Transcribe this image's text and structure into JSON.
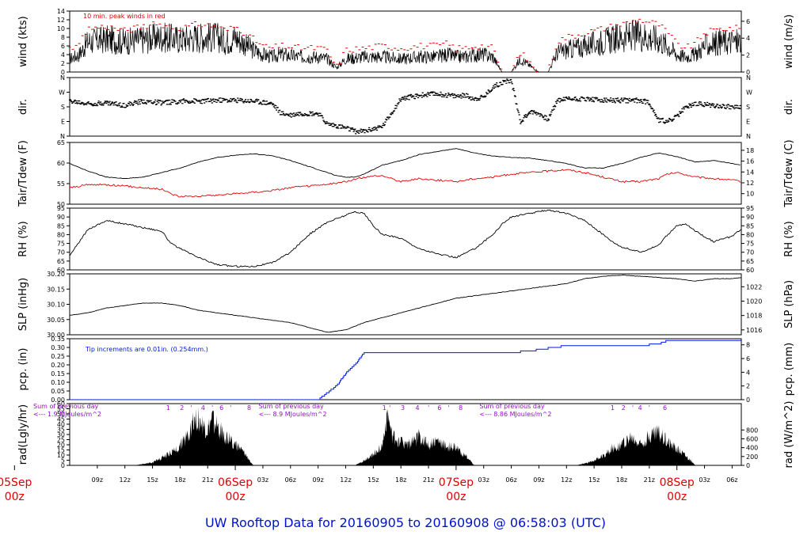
{
  "title": "UW Rooftop Data for 20160905  to  20160908 @ 06:58:03  (UTC)",
  "colors": {
    "axis": "#000000",
    "red": "#e00000",
    "blue": "#0018e0",
    "purple": "#9010c0",
    "title": "#0010d0"
  },
  "time_axis": {
    "start_hour": 6,
    "end_hour": 79,
    "ticks": [
      {
        "h": 9,
        "label": "09z"
      },
      {
        "h": 12,
        "label": "12z"
      },
      {
        "h": 15,
        "label": "15z"
      },
      {
        "h": 18,
        "label": "18z"
      },
      {
        "h": 21,
        "label": "21z"
      },
      {
        "h": 27,
        "label": "03z"
      },
      {
        "h": 30,
        "label": "06z"
      },
      {
        "h": 33,
        "label": "09z"
      },
      {
        "h": 36,
        "label": "12z"
      },
      {
        "h": 39,
        "label": "15z"
      },
      {
        "h": 42,
        "label": "18z"
      },
      {
        "h": 45,
        "label": "21z"
      },
      {
        "h": 51,
        "label": "03z"
      },
      {
        "h": 54,
        "label": "06z"
      },
      {
        "h": 57,
        "label": "09z"
      },
      {
        "h": 60,
        "label": "12z"
      },
      {
        "h": 63,
        "label": "15z"
      },
      {
        "h": 66,
        "label": "18z"
      },
      {
        "h": 69,
        "label": "21z"
      },
      {
        "h": 75,
        "label": "03z"
      },
      {
        "h": 78,
        "label": "06z"
      }
    ],
    "dates": [
      {
        "h": 0,
        "day": "05Sep",
        "z": "00z"
      },
      {
        "h": 24,
        "day": "06Sep",
        "z": "00z"
      },
      {
        "h": 48,
        "day": "07Sep",
        "z": "00z"
      },
      {
        "h": 72,
        "day": "08Sep",
        "z": "00z"
      }
    ]
  },
  "chart_data": [
    {
      "type": "line",
      "name": "wind",
      "left_label": "wind (kts)",
      "right_label": "wind (m/s)",
      "left_ticks": [
        "0",
        "2",
        "4",
        "6",
        "8",
        "10",
        "12",
        "14"
      ],
      "ylim": [
        0,
        14
      ],
      "right_ticks": [
        {
          "v": 0,
          "label": "0"
        },
        {
          "v": 3.888,
          "label": "2"
        },
        {
          "v": 7.776,
          "label": "4"
        },
        {
          "v": 11.664,
          "label": "6"
        }
      ],
      "annotation": "10 min. peak winds in red",
      "x": [
        6,
        7,
        8,
        10,
        12,
        14,
        16,
        18,
        20,
        22,
        23,
        24,
        25,
        26,
        27,
        28,
        29,
        31,
        33,
        34,
        35,
        36,
        38,
        40,
        42,
        44,
        46,
        47,
        48,
        49,
        50,
        51,
        52,
        53,
        54,
        55,
        57,
        58,
        59,
        60,
        62,
        64,
        66,
        68,
        70,
        71,
        72,
        73,
        74,
        75,
        77,
        79
      ],
      "y": [
        3,
        4,
        7,
        7.5,
        7,
        7.5,
        8,
        7.5,
        8,
        8,
        7,
        8,
        6.5,
        5,
        4,
        3.5,
        4,
        3.5,
        3.5,
        3,
        1,
        3,
        3.5,
        3.5,
        3,
        3.5,
        3.5,
        4,
        3.5,
        3.5,
        4,
        4,
        3.5,
        0,
        0,
        3,
        0,
        0,
        4.5,
        5,
        6,
        7,
        8,
        8.5,
        7.5,
        6,
        4,
        3.5,
        4,
        6,
        7,
        7
      ],
      "peak_y": [
        5,
        6,
        10,
        10.5,
        9.5,
        10.5,
        11,
        10,
        11,
        10.5,
        9.5,
        10.5,
        9,
        7.5,
        6,
        5.5,
        6,
        5.5,
        5.5,
        5,
        1,
        5,
        5.5,
        6,
        5.5,
        6,
        6,
        6.5,
        5.5,
        5.5,
        6,
        6,
        5.5,
        0,
        0,
        4.5,
        0,
        0,
        7,
        8,
        9,
        10,
        11,
        12,
        11,
        9,
        6.5,
        5.5,
        6.5,
        9,
        10,
        10
      ]
    },
    {
      "type": "scatter",
      "name": "dir",
      "left_label": "dir.",
      "right_label": "dir.",
      "left_ticks": [
        "N",
        "E",
        "S",
        "W",
        "N"
      ],
      "ylim": [
        0,
        360
      ],
      "x": [
        6,
        8,
        10,
        12,
        14,
        16,
        18,
        20,
        22,
        24,
        26,
        28,
        29,
        30,
        31,
        32,
        33,
        34,
        35,
        36,
        37,
        38,
        40,
        42,
        43,
        44,
        46,
        48,
        49,
        50,
        51,
        52,
        53,
        54,
        55,
        56,
        57,
        58,
        59,
        60,
        62,
        64,
        66,
        68,
        69,
        70,
        71,
        72,
        73,
        74,
        76,
        78,
        79
      ],
      "y": [
        215,
        200,
        205,
        190,
        215,
        205,
        215,
        215,
        220,
        220,
        215,
        200,
        140,
        130,
        140,
        140,
        140,
        75,
        65,
        50,
        30,
        30,
        60,
        230,
        240,
        250,
        260,
        245,
        250,
        230,
        240,
        300,
        330,
        340,
        90,
        150,
        140,
        100,
        220,
        230,
        230,
        220,
        220,
        220,
        205,
        100,
        90,
        120,
        180,
        200,
        190,
        180,
        175
      ]
    },
    {
      "type": "line",
      "name": "temp",
      "left_label": "Tair/Tdew (F)",
      "right_label": "Tair/Tdew (C)",
      "left_ticks": [
        "50",
        "55",
        "60",
        "65"
      ],
      "ylim": [
        46.5,
        67
      ],
      "right_ticks": [
        {
          "v": 50,
          "label": "10"
        },
        {
          "v": 53.6,
          "label": "12"
        },
        {
          "v": 57.2,
          "label": "14"
        },
        {
          "v": 60.8,
          "label": "16"
        },
        {
          "v": 64.4,
          "label": "18"
        }
      ],
      "series": [
        {
          "name": "Tair",
          "color": "#000000",
          "x": [
            6,
            8,
            10,
            12,
            14,
            16,
            18,
            20,
            22,
            24,
            26,
            28,
            30,
            32,
            34,
            35,
            36,
            37,
            38,
            40,
            42,
            44,
            46,
            48,
            50,
            52,
            54,
            56,
            58,
            60,
            62,
            64,
            66,
            68,
            70,
            72,
            74,
            76,
            78,
            79
          ],
          "y": [
            60,
            57.5,
            55.5,
            55,
            55.5,
            57,
            58.5,
            60.5,
            62,
            62.8,
            63.2,
            62.6,
            61,
            59,
            57,
            56,
            55.5,
            55.5,
            56.5,
            59.5,
            61,
            63,
            64,
            65,
            63.5,
            62.5,
            62,
            61.8,
            61,
            60,
            58.5,
            58.5,
            60,
            62,
            63.5,
            62.3,
            60.5,
            61,
            60,
            59.5
          ]
        },
        {
          "name": "Tdew",
          "color": "#e00000",
          "x": [
            6,
            8,
            10,
            12,
            14,
            16,
            17,
            18,
            20,
            22,
            24,
            26,
            28,
            30,
            32,
            34,
            36,
            38,
            40,
            42,
            44,
            46,
            48,
            50,
            52,
            54,
            56,
            58,
            60,
            62,
            64,
            66,
            68,
            70,
            71,
            72,
            74,
            76,
            78,
            79
          ],
          "y": [
            52,
            53,
            53,
            52.5,
            52,
            51.5,
            50,
            49,
            49.2,
            49.5,
            50,
            50.5,
            51,
            52,
            52.5,
            53,
            54,
            55.5,
            56,
            54,
            55,
            54.5,
            54,
            55,
            55.5,
            56.5,
            57,
            57.5,
            58,
            57,
            55.5,
            54,
            54,
            55,
            56.5,
            57,
            55.5,
            55,
            54.5,
            54
          ]
        }
      ]
    },
    {
      "type": "line",
      "name": "rh",
      "left_label": "RH (%)",
      "right_label": "RH (%)",
      "left_ticks": [
        "60",
        "65",
        "70",
        "75",
        "80",
        "85",
        "90",
        "95"
      ],
      "ylim": [
        60,
        95
      ],
      "right_ticks": [
        {
          "v": 60,
          "label": "60"
        },
        {
          "v": 65,
          "label": "65"
        },
        {
          "v": 70,
          "label": "70"
        },
        {
          "v": 75,
          "label": "75"
        },
        {
          "v": 80,
          "label": "80"
        },
        {
          "v": 85,
          "label": "85"
        },
        {
          "v": 90,
          "label": "90"
        },
        {
          "v": 95,
          "label": "95"
        }
      ],
      "x": [
        6,
        8,
        10,
        12,
        14,
        16,
        17,
        18,
        20,
        22,
        24,
        26,
        28,
        30,
        32,
        34,
        36,
        37,
        38,
        39,
        40,
        42,
        44,
        46,
        48,
        50,
        52,
        53,
        54,
        56,
        57,
        58,
        60,
        62,
        64,
        65,
        66,
        68,
        70,
        71,
        72,
        73,
        74,
        76,
        78,
        79
      ],
      "y": [
        68,
        83,
        88,
        86,
        84,
        82,
        75,
        72,
        67,
        63,
        62,
        62,
        64,
        70,
        80,
        87,
        91,
        93,
        92,
        85,
        80,
        78,
        72,
        69,
        67,
        72,
        80,
        86,
        90,
        92,
        93,
        94,
        92,
        88,
        80,
        76,
        73,
        70,
        74,
        80,
        85,
        86,
        82,
        76,
        79,
        83
      ]
    },
    {
      "type": "line",
      "name": "slp",
      "left_label": "SLP (inHg)",
      "right_label": "SLP (hPa)",
      "left_ticks": [
        "30.00",
        "30.05",
        "30.10",
        "30.15",
        "30.20"
      ],
      "ylim": [
        29.97,
        30.22
      ],
      "right_ticks": [
        {
          "v": 29.99,
          "label": "1016"
        },
        {
          "v": 30.049,
          "label": "1018"
        },
        {
          "v": 30.108,
          "label": "1020"
        },
        {
          "v": 30.167,
          "label": "1022"
        }
      ],
      "x": [
        6,
        8,
        10,
        12,
        14,
        16,
        18,
        20,
        22,
        24,
        26,
        28,
        30,
        32,
        34,
        36,
        38,
        40,
        42,
        44,
        46,
        48,
        50,
        52,
        54,
        56,
        58,
        60,
        62,
        64,
        66,
        68,
        70,
        72,
        74,
        76,
        78,
        79
      ],
      "y": [
        30.05,
        30.06,
        30.08,
        30.09,
        30.1,
        30.1,
        30.09,
        30.07,
        30.06,
        30.05,
        30.04,
        30.03,
        30.02,
        30.0,
        29.98,
        29.99,
        30.02,
        30.04,
        30.06,
        30.08,
        30.1,
        30.12,
        30.13,
        30.14,
        30.15,
        30.16,
        30.17,
        30.18,
        30.2,
        30.21,
        30.215,
        30.21,
        30.205,
        30.2,
        30.19,
        30.2,
        30.2,
        30.205
      ]
    },
    {
      "type": "line",
      "name": "pcp",
      "left_label": "pcp. (in)",
      "right_label": "pcp. (mm)",
      "left_ticks": [
        "0.00",
        "0.05",
        "0.10",
        "0.15",
        "0.20",
        "0.25",
        "0.30",
        "0.35"
      ],
      "ylim": [
        0,
        0.35
      ],
      "right_ticks": [
        {
          "v": 0,
          "label": "0"
        },
        {
          "v": 0.0787,
          "label": "2"
        },
        {
          "v": 0.1575,
          "label": "4"
        },
        {
          "v": 0.2362,
          "label": "6"
        },
        {
          "v": 0.315,
          "label": "8"
        }
      ],
      "annotation": "Tip increments are 0.01in. (0.254mm.)",
      "x": [
        6,
        33,
        34,
        35,
        36,
        37,
        38,
        41,
        45,
        50,
        54,
        56,
        60,
        62,
        64,
        66,
        68,
        70,
        71,
        72,
        74,
        77,
        79
      ],
      "y": [
        0,
        0,
        0.04,
        0.08,
        0.15,
        0.2,
        0.27,
        0.27,
        0.27,
        0.27,
        0.27,
        0.28,
        0.31,
        0.31,
        0.31,
        0.31,
        0.31,
        0.32,
        0.34,
        0.34,
        0.34,
        0.34,
        0.34
      ]
    },
    {
      "type": "area",
      "name": "rad",
      "left_label": "rad(Lgly/hr)",
      "right_label": "rad (W/m^2)",
      "left_ticks": [
        "0",
        "5",
        "10",
        "15",
        "20",
        "25",
        "30",
        "35",
        "40",
        "45",
        "50",
        "55",
        "60"
      ],
      "ylim": [
        0,
        60
      ],
      "right_ticks": [
        {
          "v": 0,
          "label": "0"
        },
        {
          "v": 8.6,
          "label": "200"
        },
        {
          "v": 17.2,
          "label": "400"
        },
        {
          "v": 25.8,
          "label": "600"
        },
        {
          "v": 34.4,
          "label": "800"
        }
      ],
      "x": [
        6,
        13,
        15,
        16,
        17,
        18,
        19,
        19.5,
        20,
        20.5,
        21,
        21.5,
        22,
        23,
        24,
        25,
        26,
        37,
        38,
        39,
        40,
        40.5,
        41,
        42,
        43,
        44,
        45,
        46,
        47,
        48,
        49,
        50,
        61,
        62,
        63,
        64,
        65,
        66,
        67,
        68,
        69,
        70,
        71,
        72,
        73,
        74,
        79
      ],
      "y": [
        0,
        0,
        3,
        8,
        13,
        20,
        35,
        50,
        48,
        40,
        35,
        48,
        40,
        30,
        22,
        12,
        0,
        0,
        5,
        12,
        20,
        55,
        30,
        25,
        22,
        30,
        22,
        25,
        20,
        18,
        10,
        0,
        0,
        2,
        5,
        10,
        18,
        22,
        28,
        22,
        30,
        35,
        25,
        18,
        10,
        0,
        0
      ],
      "daily_sums": [
        {
          "h": 6,
          "l1": "Sum of previous day",
          "l2": "<--- 1.9 MJoules/m^2"
        },
        {
          "h": 30.5,
          "l1": "Sum of previous day",
          "l2": "<--- 8.9 MJoules/m^2"
        },
        {
          "h": 54.5,
          "l1": "Sum of previous day",
          "l2": "<--- 8.86 MJoules/m^2"
        }
      ],
      "markers": [
        {
          "h": 16.7,
          "label": "1"
        },
        {
          "h": 18.2,
          "label": "2"
        },
        {
          "h": 19.2,
          "label": "'"
        },
        {
          "h": 20.5,
          "label": "4"
        },
        {
          "h": 21.5,
          "label": "'"
        },
        {
          "h": 22.5,
          "label": "6"
        },
        {
          "h": 23.5,
          "label": "'"
        },
        {
          "h": 25.5,
          "label": "8"
        },
        {
          "h": 40.2,
          "label": "1"
        },
        {
          "h": 40.8,
          "label": "'"
        },
        {
          "h": 42.2,
          "label": "3"
        },
        {
          "h": 43.8,
          "label": "4"
        },
        {
          "h": 45,
          "label": "'"
        },
        {
          "h": 46.2,
          "label": "6"
        },
        {
          "h": 47.2,
          "label": "'"
        },
        {
          "h": 48.5,
          "label": "8"
        },
        {
          "h": 65,
          "label": "1"
        },
        {
          "h": 66.2,
          "label": "2"
        },
        {
          "h": 67.2,
          "label": "'"
        },
        {
          "h": 68,
          "label": "4"
        },
        {
          "h": 69,
          "label": "'"
        },
        {
          "h": 70.7,
          "label": "6"
        }
      ]
    }
  ]
}
